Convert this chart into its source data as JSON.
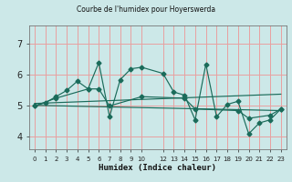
{
  "title": "Courbe de l'humidex pour Hoyerswerda",
  "xlabel": "Humidex (Indice chaleur)",
  "bg_color": "#cce8e8",
  "grid_color": "#e8a0a0",
  "line_color": "#1a6b5a",
  "xlim": [
    -0.5,
    23.5
  ],
  "ylim": [
    3.6,
    7.6
  ],
  "yticks": [
    4,
    5,
    6,
    7
  ],
  "xtick_positions": [
    0,
    1,
    2,
    3,
    4,
    5,
    6,
    7,
    8,
    9,
    10,
    12,
    13,
    14,
    15,
    16,
    17,
    18,
    19,
    20,
    21,
    22,
    23
  ],
  "xtick_labels": [
    "0",
    "1",
    "2",
    "3",
    "4",
    "5",
    "6",
    "7",
    "8",
    "9",
    "10",
    "12",
    "13",
    "14",
    "15",
    "16",
    "17",
    "18",
    "19",
    "20",
    "21",
    "22",
    "23"
  ],
  "series1_x": [
    0,
    1,
    2,
    3,
    4,
    5,
    6,
    7,
    8,
    9,
    10,
    12,
    13,
    14,
    15,
    16,
    17,
    18,
    19,
    20,
    21,
    22,
    23
  ],
  "series1_y": [
    5.0,
    5.1,
    5.3,
    5.5,
    5.8,
    5.55,
    6.4,
    4.65,
    5.85,
    6.2,
    6.25,
    6.05,
    5.45,
    5.35,
    4.55,
    6.35,
    4.65,
    5.05,
    5.15,
    4.1,
    4.45,
    4.55,
    4.9
  ],
  "series2_x": [
    0,
    2,
    5,
    6,
    7,
    10,
    14,
    15,
    19,
    20,
    22,
    23
  ],
  "series2_y": [
    5.0,
    5.25,
    5.55,
    5.55,
    5.0,
    5.3,
    5.25,
    4.9,
    4.85,
    4.6,
    4.7,
    4.9
  ],
  "trend1_x": [
    0,
    23
  ],
  "trend1_y": [
    5.02,
    4.85
  ],
  "trend2_x": [
    0,
    23
  ],
  "trend2_y": [
    5.08,
    5.38
  ]
}
